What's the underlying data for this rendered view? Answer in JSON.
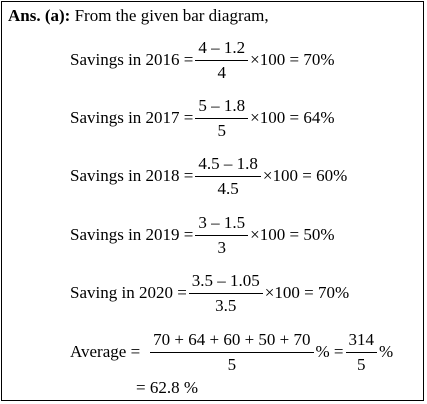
{
  "heading": {
    "label": "Ans. (a):",
    "text": "From the given bar diagram,"
  },
  "equations": [
    {
      "lhs": "Savings in 2016 =",
      "numerator": "4 – 1.2",
      "denominator": "4",
      "rhs": "×100 = 70%"
    },
    {
      "lhs": "Savings in 2017 =",
      "numerator": "5 – 1.8",
      "denominator": "5",
      "rhs": "×100 = 64%"
    },
    {
      "lhs": "Savings in 2018 =",
      "numerator": "4.5 – 1.8",
      "denominator": "4.5",
      "rhs": "×100 = 60%"
    },
    {
      "lhs": "Savings in 2019 =",
      "numerator": "3 – 1.5",
      "denominator": "3",
      "rhs": "×100 = 50%"
    },
    {
      "lhs": "Saving in 2020 =",
      "numerator": "3.5 – 1.05",
      "denominator": "3.5",
      "rhs": "×100 = 70%"
    }
  ],
  "average": {
    "lhs": "Average =",
    "numerator": "70 + 64 + 60 + 50 + 70",
    "denominator": "5",
    "mid": "% =",
    "numerator2": "314",
    "denominator2": "5",
    "rhs": "%",
    "result": "= 62.8 %"
  }
}
